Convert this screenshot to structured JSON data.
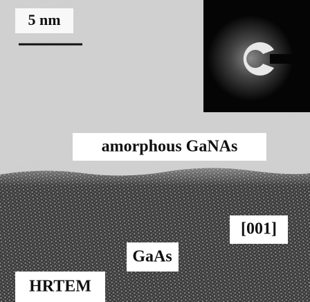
{
  "scale_bar": {
    "label": "5 nm"
  },
  "labels": {
    "amorphous": "amorphous GaNAs",
    "substrate": "GaAs",
    "direction": "[001]",
    "method": "HRTEM"
  }
}
